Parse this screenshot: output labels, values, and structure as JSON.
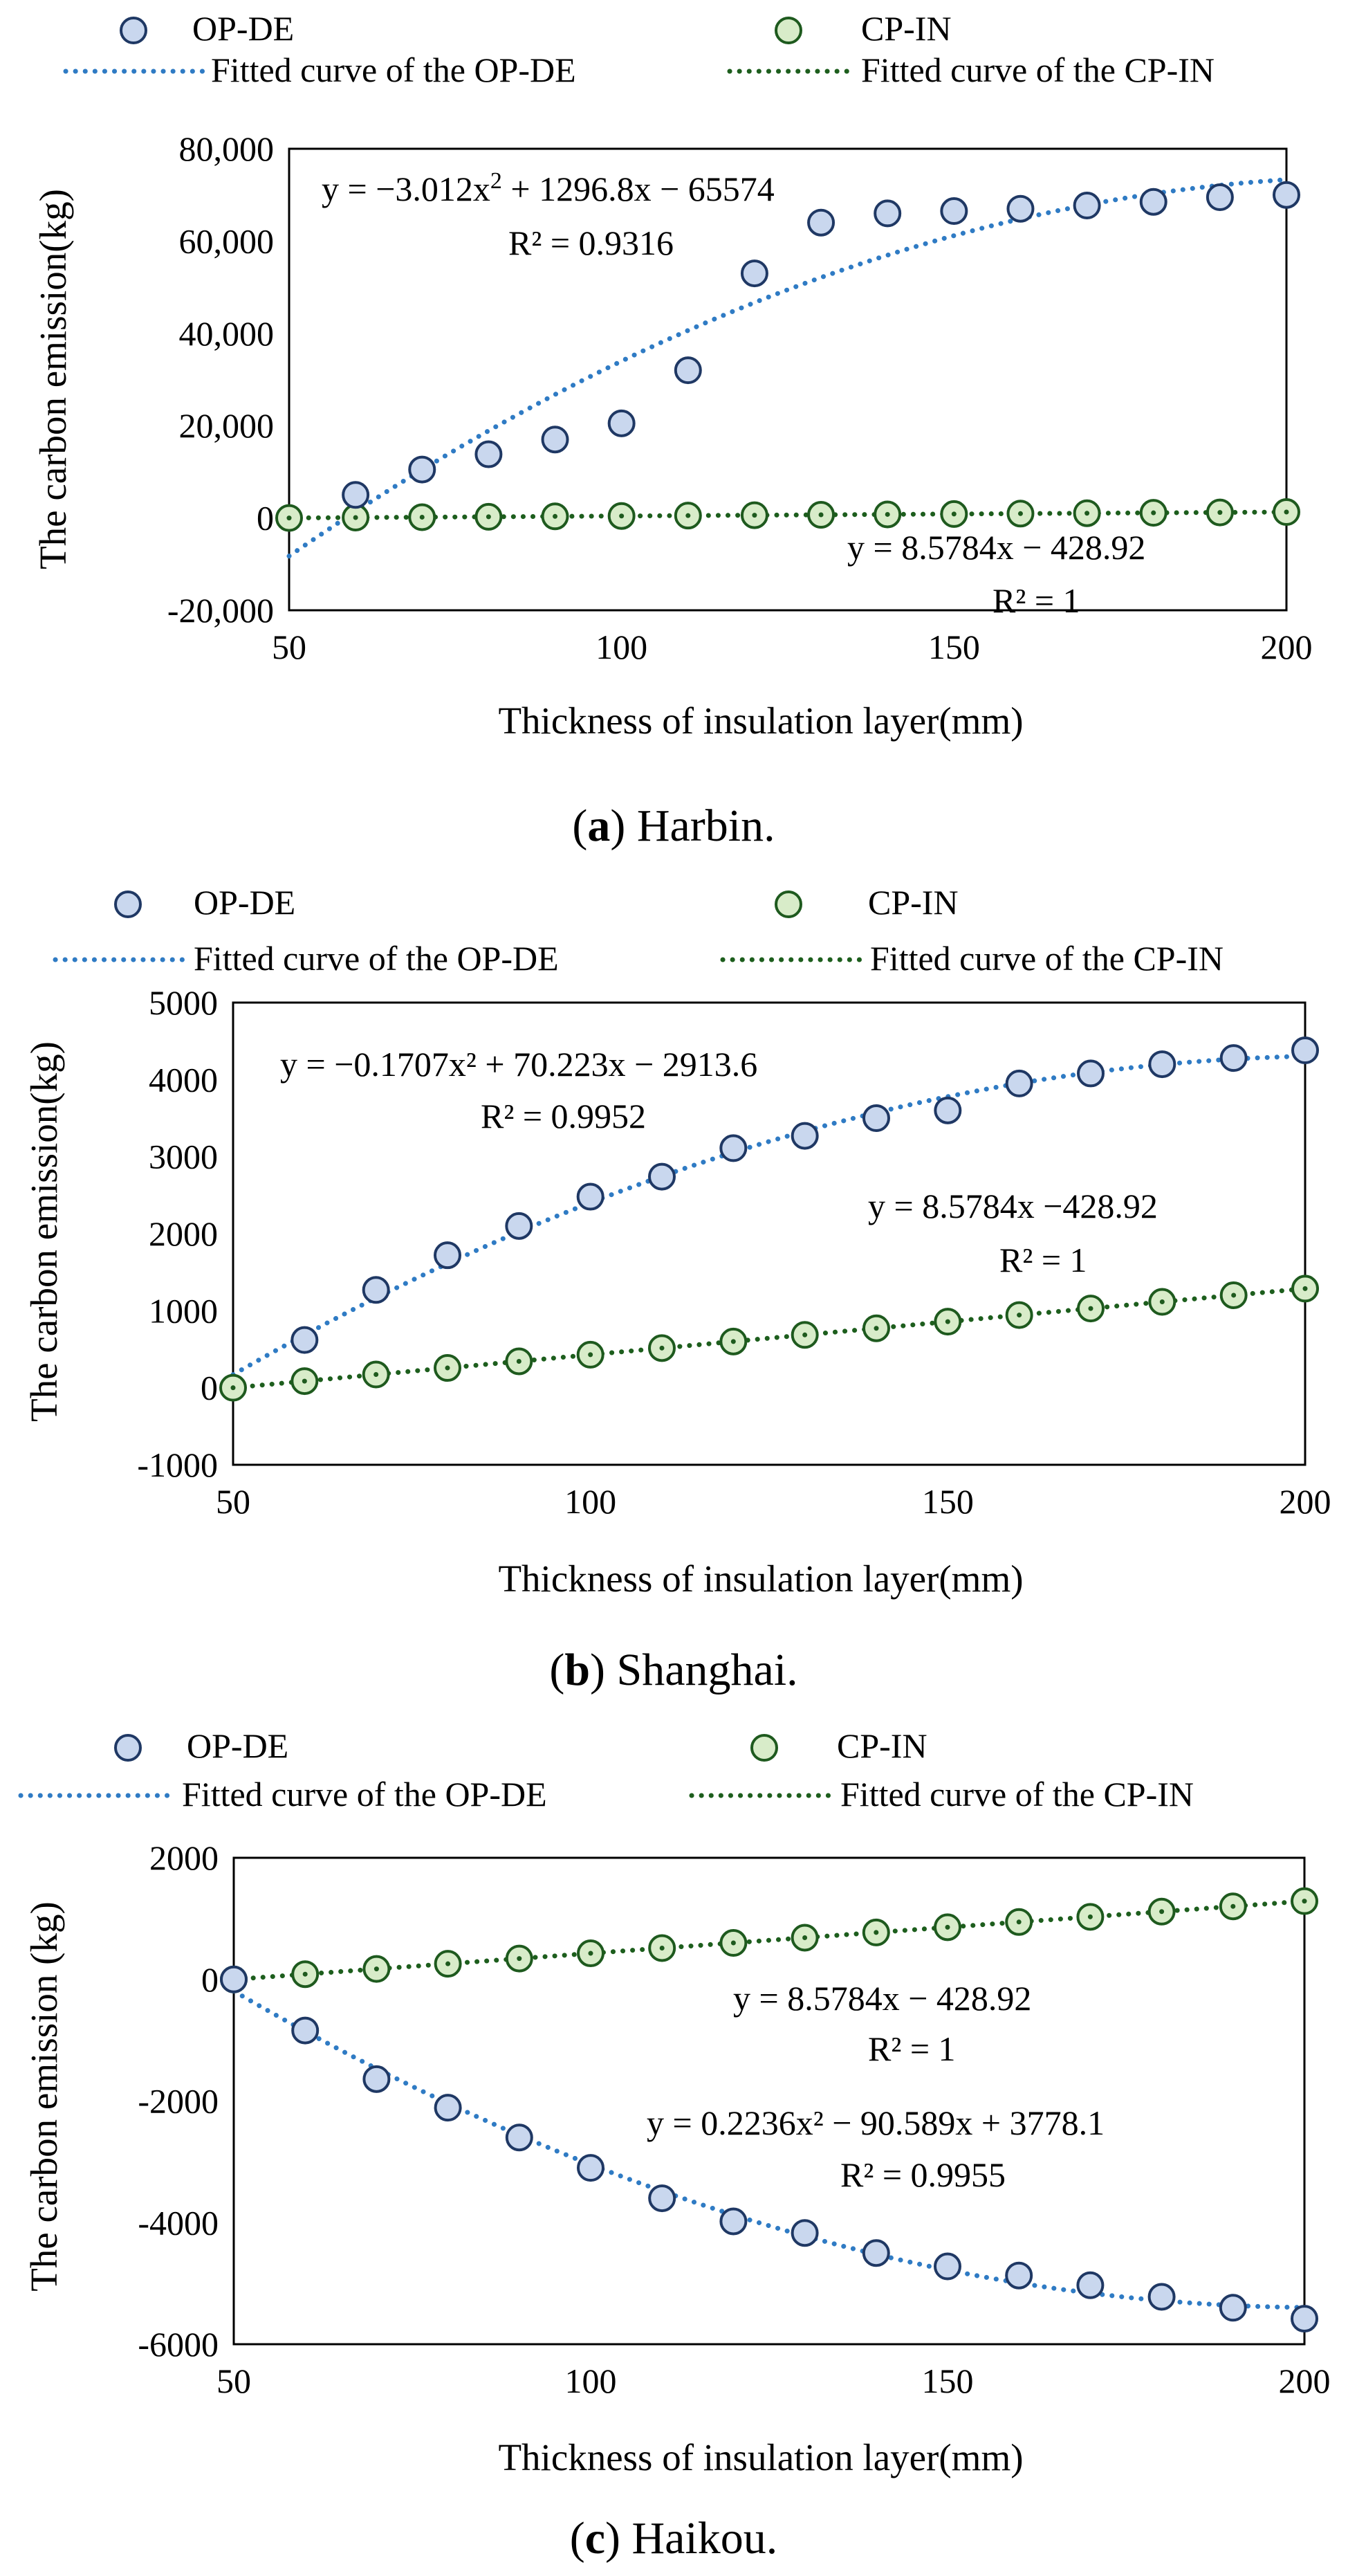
{
  "colors": {
    "op_fill": "#c9d7ee",
    "op_stroke": "#1f3864",
    "op_fit": "#2f7bc4",
    "cp_fill": "#d8ecc9",
    "cp_stroke": "#1e5a1e",
    "cp_fit": "#1d5e1d",
    "axis": "#000000"
  },
  "chart_data": [
    {
      "type": "scatter",
      "panel": "a",
      "caption_letter": "a",
      "caption_text": "Harbin.",
      "xlabel": "Thickness of  insulation layer(mm)",
      "ylabel": "The carbon emission(kg)",
      "xlim": [
        50,
        200
      ],
      "ylim": [
        -20000,
        80000
      ],
      "xticks": [
        50,
        100,
        150,
        200
      ],
      "xtick_labels": [
        "50",
        "100",
        "150",
        "200"
      ],
      "yticks": [
        -20000,
        0,
        20000,
        40000,
        60000,
        80000
      ],
      "ytick_labels": [
        "-20,000",
        "0",
        "20,000",
        "40,000",
        "60,000",
        "80,000"
      ],
      "legend": {
        "op": "OP-DE",
        "cp": "CP-IN",
        "op_fit": "Fitted curve of the OP-DE",
        "cp_fit": "Fitted curve of the CP-IN"
      },
      "series": [
        {
          "name": "OP-DE",
          "x": [
            60,
            70,
            80,
            90,
            100,
            110,
            120,
            130,
            140,
            150,
            160,
            170,
            180,
            190,
            200
          ],
          "y": [
            5000,
            10500,
            13800,
            17000,
            20500,
            32000,
            53000,
            64000,
            66000,
            66500,
            67000,
            67700,
            68500,
            69500,
            70000
          ]
        },
        {
          "name": "CP-IN",
          "x": [
            50,
            60,
            70,
            80,
            90,
            100,
            110,
            120,
            130,
            140,
            150,
            160,
            170,
            180,
            190,
            200
          ],
          "y": [
            0,
            86,
            172,
            257,
            343,
            429,
            515,
            600,
            686,
            772,
            858,
            944,
            1029,
            1115,
            1201,
            1287
          ]
        }
      ],
      "fits": {
        "op": {
          "coeffs": [
            -3.012,
            1296.8,
            -65574
          ],
          "range": [
            50,
            200
          ]
        },
        "cp": {
          "coeffs": [
            0,
            8.5784,
            -428.92
          ],
          "range": [
            50,
            200
          ]
        }
      },
      "annotations": [
        {
          "id": "op_eq",
          "html": "y = −3.012x<sup>2</sup> + 1296.8x − 65574",
          "text": "y = −3.012x2 + 1296.8x − 65574"
        },
        {
          "id": "op_r2",
          "text": "R² = 0.9316"
        },
        {
          "id": "cp_eq",
          "text": "y = 8.5784x − 428.92"
        },
        {
          "id": "cp_r2",
          "text": "R² = 1"
        }
      ]
    },
    {
      "type": "scatter",
      "panel": "b",
      "caption_letter": "b",
      "caption_text": "Shanghai.",
      "xlabel": "Thickness of  insulation layer(mm)",
      "ylabel": "The carbon emission(kg)",
      "xlim": [
        50,
        200
      ],
      "ylim": [
        -1000,
        5000
      ],
      "xticks": [
        50,
        100,
        150,
        200
      ],
      "xtick_labels": [
        "50",
        "100",
        "150",
        "200"
      ],
      "yticks": [
        -1000,
        0,
        1000,
        2000,
        3000,
        4000,
        5000
      ],
      "ytick_labels": [
        "-1000",
        "0",
        "1000",
        "2000",
        "3000",
        "4000",
        "5000"
      ],
      "legend": {
        "op": "OP-DE",
        "cp": "CP-IN",
        "op_fit": "Fitted curve of the OP-DE",
        "cp_fit": "Fitted curve of the CP-IN"
      },
      "series": [
        {
          "name": "OP-DE",
          "x": [
            60,
            70,
            80,
            90,
            100,
            110,
            120,
            130,
            140,
            150,
            160,
            170,
            180,
            190,
            200
          ],
          "y": [
            620,
            1270,
            1720,
            2100,
            2480,
            2740,
            3110,
            3270,
            3500,
            3600,
            3950,
            4080,
            4200,
            4280,
            4380
          ]
        },
        {
          "name": "CP-IN",
          "x": [
            50,
            60,
            70,
            80,
            90,
            100,
            110,
            120,
            130,
            140,
            150,
            160,
            170,
            180,
            190,
            200
          ],
          "y": [
            0,
            86,
            172,
            257,
            343,
            429,
            515,
            600,
            686,
            772,
            858,
            944,
            1029,
            1115,
            1201,
            1287
          ]
        }
      ],
      "fits": {
        "op": {
          "coeffs": [
            -0.1707,
            70.223,
            -2913.6
          ],
          "range": [
            50,
            200
          ]
        },
        "cp": {
          "coeffs": [
            0,
            8.5784,
            -428.92
          ],
          "range": [
            50,
            200
          ]
        }
      },
      "annotations": [
        {
          "id": "op_eq",
          "text": "y = −0.1707x² + 70.223x − 2913.6"
        },
        {
          "id": "op_r2",
          "text": "R² = 0.9952"
        },
        {
          "id": "cp_eq",
          "text": "y = 8.5784x −428.92"
        },
        {
          "id": "cp_r2",
          "text": "R² = 1"
        }
      ]
    },
    {
      "type": "scatter",
      "panel": "c",
      "caption_letter": "c",
      "caption_text": "Haikou.",
      "xlabel": "Thickness of  insulation layer(mm)",
      "ylabel": "The carbon emission (kg)",
      "xlim": [
        50,
        200
      ],
      "ylim": [
        -6000,
        2000
      ],
      "xticks": [
        50,
        100,
        150,
        200
      ],
      "xtick_labels": [
        "50",
        "100",
        "150",
        "200"
      ],
      "yticks": [
        -6000,
        -4000,
        -2000,
        0,
        2000
      ],
      "ytick_labels": [
        "-6000",
        "-4000",
        "-2000",
        "0",
        "2000"
      ],
      "legend": {
        "op": "OP-DE",
        "cp": "CP-IN",
        "op_fit": "Fitted curve of the OP-DE",
        "cp_fit": "Fitted curve of the CP-IN"
      },
      "series": [
        {
          "name": "OP-DE",
          "x": [
            50,
            60,
            70,
            80,
            90,
            100,
            110,
            120,
            130,
            140,
            150,
            160,
            170,
            180,
            190,
            200
          ],
          "y": [
            0,
            -840,
            -1640,
            -2110,
            -2600,
            -3100,
            -3600,
            -3980,
            -4170,
            -4500,
            -4720,
            -4870,
            -5030,
            -5220,
            -5400,
            -5580
          ]
        },
        {
          "name": "CP-IN",
          "x": [
            50,
            60,
            70,
            80,
            90,
            100,
            110,
            120,
            130,
            140,
            150,
            160,
            170,
            180,
            190,
            200
          ],
          "y": [
            0,
            86,
            172,
            257,
            343,
            429,
            515,
            600,
            686,
            772,
            858,
            944,
            1029,
            1115,
            1201,
            1287
          ]
        }
      ],
      "fits": {
        "op": {
          "coeffs": [
            0.2236,
            -90.589,
            3778.1
          ],
          "range": [
            50,
            200
          ]
        },
        "cp": {
          "coeffs": [
            0,
            8.5784,
            -428.92
          ],
          "range": [
            50,
            200
          ]
        }
      },
      "annotations": [
        {
          "id": "cp_eq",
          "text": "y = 8.5784x − 428.92"
        },
        {
          "id": "cp_r2",
          "text": "R² = 1"
        },
        {
          "id": "op_eq",
          "text": "y = 0.2236x² − 90.589x + 3778.1"
        },
        {
          "id": "op_r2",
          "text": "R² = 0.9955"
        }
      ]
    }
  ]
}
